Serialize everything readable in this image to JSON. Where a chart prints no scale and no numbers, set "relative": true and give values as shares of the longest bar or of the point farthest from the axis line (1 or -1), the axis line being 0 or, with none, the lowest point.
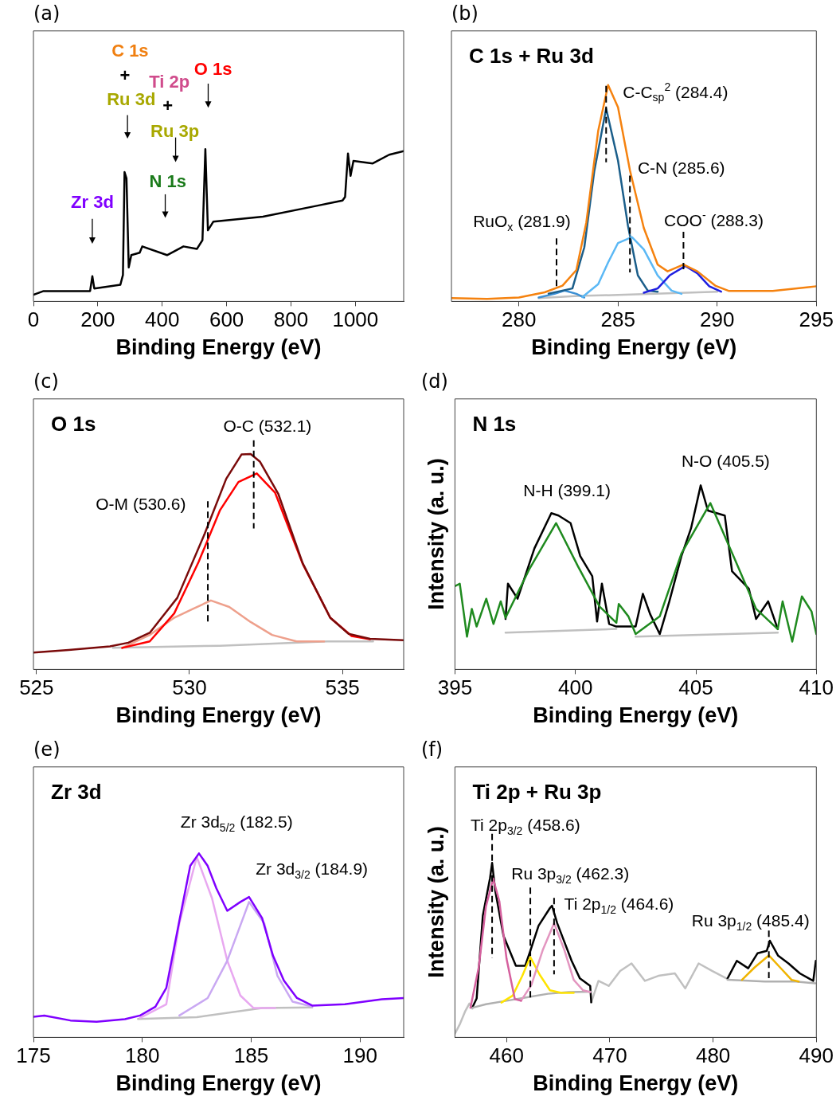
{
  "chart_data": [
    {
      "type": "line",
      "title": "(a)",
      "xlabel": "Binding Energy (eV)",
      "relative": true,
      "xlim": [
        0,
        1150
      ],
      "xticks": [
        0,
        200,
        400,
        600,
        800,
        1000
      ],
      "series": [
        {
          "color": "#000000",
          "x": [
            0,
            31.5,
            176,
            183,
            189,
            270,
            278,
            283,
            289,
            296,
            304,
            330,
            338,
            415,
            466,
            508,
            525,
            534,
            542,
            559,
            713,
            883,
            960,
            968,
            977,
            985,
            994,
            1054,
            1105,
            1150
          ],
          "values": [
            0.044,
            0.068,
            0.068,
            0.166,
            0.085,
            0.109,
            0.174,
            0.849,
            0.808,
            0.223,
            0.304,
            0.32,
            0.361,
            0.304,
            0.361,
            0.345,
            0.402,
            1,
            0.467,
            0.524,
            0.556,
            0.629,
            0.662,
            0.686,
            0.971,
            0.824,
            0.922,
            0.906,
            0.963,
            0.987
          ]
        }
      ],
      "annotations": [
        "C 1s",
        "+",
        "Ti 2p",
        "O 1s",
        "Ru 3d",
        "+",
        "Ru 3p",
        "N 1s",
        "Zr 3d"
      ]
    },
    {
      "type": "line",
      "title": "(b)",
      "subtitle": "C 1s + Ru 3d",
      "xlabel": "Binding Energy (eV)",
      "relative": true,
      "xlim": [
        276.6,
        295
      ],
      "xticks": [
        280,
        285,
        290,
        295
      ],
      "series": [
        {
          "color": "#c0c0c0",
          "x": [
            281,
            283,
            285,
            290
          ],
          "values": [
            0.015,
            0.025,
            0.03,
            0.045
          ]
        },
        {
          "color": "#3b8fd4",
          "x": [
            281,
            281.8,
            282.3,
            282.9,
            283.3
          ],
          "values": [
            0.018,
            0.035,
            0.05,
            0.035,
            0.018
          ]
        },
        {
          "color": "#1b5e8a",
          "x": [
            281.5,
            282.7,
            283.3,
            283.8,
            284.4,
            285,
            285.5,
            286,
            286.5,
            287
          ],
          "values": [
            0.036,
            0.06,
            0.25,
            0.6,
            0.891,
            0.65,
            0.35,
            0.12,
            0.05,
            0.045
          ]
        },
        {
          "color": "#5bb8f5",
          "x": [
            283.2,
            284,
            284.5,
            285,
            285.7,
            286.3,
            287,
            287.7,
            288.2
          ],
          "values": [
            0.02,
            0.08,
            0.18,
            0.27,
            0.297,
            0.24,
            0.12,
            0.05,
            0.035
          ]
        },
        {
          "color": "#1f1fe0",
          "x": [
            286.3,
            287,
            287.6,
            288.4,
            289,
            289.6,
            290.2
          ],
          "values": [
            0.04,
            0.06,
            0.12,
            0.164,
            0.13,
            0.07,
            0.045
          ]
        },
        {
          "color": "#f5820f",
          "x": [
            276.6,
            278.4,
            280,
            281.3,
            282.2,
            282.9,
            283.4,
            284,
            284.5,
            285,
            285.6,
            286.3,
            287,
            287.5,
            288.3,
            289,
            289.9,
            290.6,
            292.8,
            295
          ],
          "values": [
            0.015,
            0.012,
            0.018,
            0.042,
            0.073,
            0.145,
            0.364,
            0.788,
            1,
            0.897,
            0.606,
            0.339,
            0.17,
            0.139,
            0.17,
            0.139,
            0.073,
            0.048,
            0.048,
            0.07
          ]
        }
      ],
      "ref_lines": [
        {
          "axis": "x",
          "value": 284.4,
          "label": "C-C$_{sp}$$^{2}$ (284.4)",
          "line_style": "dashed"
        },
        {
          "axis": "x",
          "value": 285.6,
          "label": "C-N (285.6)",
          "line_style": "dashed"
        },
        {
          "axis": "x",
          "value": 281.9,
          "label": "RuO$_{x}$ (281.9)",
          "line_style": "dashed"
        },
        {
          "axis": "x",
          "value": 288.3,
          "label": "COO$^{-}$ (288.3)",
          "line_style": "dashed"
        }
      ]
    },
    {
      "type": "line",
      "title": "(c)",
      "subtitle": "O 1s",
      "xlabel": "Binding Energy (eV)",
      "relative": true,
      "xlim": [
        524.9,
        537
      ],
      "xticks": [
        525,
        530,
        535
      ],
      "series": [
        {
          "color": "#c0c0c0",
          "x": [
            527.5,
            531,
            534.5,
            536
          ],
          "values": [
            0.1,
            0.11,
            0.13,
            0.13
          ]
        },
        {
          "color": "#eea08c",
          "x": [
            527.8,
            528.7,
            529.5,
            530.1,
            530.7,
            531.3,
            532,
            532.7,
            533.5,
            534.4
          ],
          "values": [
            0.1,
            0.16,
            0.24,
            0.28,
            0.32,
            0.29,
            0.22,
            0.16,
            0.13,
            0.13
          ]
        },
        {
          "color": "#ff0000",
          "x": [
            527.8,
            528.7,
            529.5,
            530.3,
            531,
            531.6,
            532.2,
            532.8,
            533.7,
            534.6,
            535.3,
            535.9
          ],
          "values": [
            0.1,
            0.13,
            0.26,
            0.5,
            0.74,
            0.87,
            0.91,
            0.82,
            0.49,
            0.24,
            0.155,
            0.14
          ]
        },
        {
          "color": "#7a0a0a",
          "x": [
            524.9,
            526.05,
            527.4,
            528,
            528.7,
            529.6,
            530.5,
            531.2,
            531.7,
            532,
            532.3,
            532.9,
            533.7,
            534.6,
            535.2,
            535.9,
            537
          ],
          "values": [
            0.078,
            0.09,
            0.107,
            0.124,
            0.17,
            0.332,
            0.631,
            0.885,
            0.998,
            1,
            0.965,
            0.816,
            0.493,
            0.24,
            0.165,
            0.142,
            0.136
          ]
        }
      ],
      "ref_lines": [
        {
          "axis": "x",
          "value": 532.1,
          "label": "O-C (532.1)",
          "line_style": "dashed"
        },
        {
          "axis": "x",
          "value": 530.6,
          "label": "O-M (530.6)",
          "line_style": "dashed"
        }
      ]
    },
    {
      "type": "line",
      "title": "(d)",
      "subtitle": "N 1s",
      "xlabel": "Binding Energy (eV)",
      "ylabel": "Intensity (a. u.)",
      "relative": true,
      "xlim": [
        395,
        410
      ],
      "xticks": [
        395,
        400,
        405,
        410
      ],
      "series": [
        {
          "color": "#c0c0c0",
          "x": [
            397.1,
            401.7,
            402.1,
            402.5,
            408.4
          ],
          "values": [
            0.2,
            0.22,
            null,
            0.178,
            0.2
          ]
        },
        {
          "color": "#000000",
          "x": [
            397.1,
            397.2,
            397.6,
            398.3,
            399,
            399.3,
            399.8,
            400.2,
            400.7,
            400.9,
            401.1,
            401.4,
            401.7,
            402.5,
            402.8,
            403.1,
            403.5,
            403.9,
            404.4,
            404.8,
            405.2,
            405.5,
            406.2,
            406.5,
            407.2,
            407.5,
            408,
            408.4
          ],
          "values": [
            0.274,
            0.466,
            0.384,
            0.658,
            0.849,
            0.836,
            0.795,
            0.616,
            0.507,
            0.26,
            0.466,
            0.247,
            0.233,
            0.233,
            0.411,
            0.301,
            0.192,
            0.37,
            0.616,
            0.767,
            1,
            0.863,
            0.836,
            0.534,
            0.438,
            0.274,
            0.37,
            0.219
          ]
        },
        {
          "color": "#1f8a1f",
          "x": [
            395,
            395.2,
            395.5,
            395.7,
            395.9,
            396.3,
            396.6,
            396.9,
            397.1,
            398.1,
            399.2,
            400.1,
            401,
            401.7,
            401.8,
            402.2,
            402.5,
            403.5,
            404.4,
            405.6,
            406.6,
            407.5,
            408.4,
            408.6,
            409,
            409.4,
            409.8,
            410
          ],
          "values": [
            0.452,
            0.466,
            0.178,
            0.329,
            0.233,
            0.384,
            0.247,
            0.37,
            0.281,
            0.548,
            0.795,
            0.562,
            0.342,
            0.253,
            0.356,
            0.288,
            0.192,
            0.288,
            0.63,
            0.904,
            0.603,
            0.329,
            0.219,
            0.37,
            0.151,
            0.397,
            0.315,
            0.192
          ]
        }
      ],
      "annotations": [
        "N-H (399.1)",
        "N-O (405.5)"
      ]
    },
    {
      "type": "line",
      "title": "(e)",
      "subtitle": "Zr 3d",
      "xlabel": "Binding Energy (eV)",
      "relative": true,
      "xlim": [
        175,
        192
      ],
      "xticks": [
        175,
        180,
        185,
        190
      ],
      "series": [
        {
          "color": "#c0c0c0",
          "x": [
            179.8,
            182.5,
            185.5,
            187.8
          ],
          "values": [
            0.1,
            0.11,
            0.16,
            0.163
          ]
        },
        {
          "color": "#e8a8f0",
          "x": [
            179.9,
            181.1,
            181.7,
            182.5,
            183.2,
            183.9,
            184.5,
            185.1,
            186.1
          ],
          "values": [
            0.106,
            0.18,
            0.62,
            0.98,
            0.756,
            0.417,
            0.228,
            0.16,
            0.16
          ]
        },
        {
          "color": "#c9a8f2",
          "x": [
            181.7,
            183,
            183.9,
            184.9,
            185.6,
            186.2,
            186.9,
            187.8
          ],
          "values": [
            0.119,
            0.214,
            0.417,
            0.736,
            0.62,
            0.336,
            0.194,
            0.167
          ]
        },
        {
          "color": "#7f00ff",
          "x": [
            175,
            175.5,
            176.7,
            177.9,
            179.2,
            179.9,
            180.6,
            181.1,
            181.7,
            182.2,
            182.6,
            183,
            183.4,
            183.9,
            184.5,
            184.9,
            185.5,
            186,
            186.5,
            187.1,
            187.8,
            189.3,
            191,
            192
          ],
          "values": [
            0.112,
            0.119,
            0.092,
            0.085,
            0.099,
            0.119,
            0.167,
            0.268,
            0.634,
            0.932,
            1,
            0.932,
            0.81,
            0.688,
            0.736,
            0.763,
            0.648,
            0.444,
            0.309,
            0.214,
            0.173,
            0.18,
            0.207,
            0.214
          ]
        }
      ],
      "annotations": [
        "Zr 3d$_{5/2}$ (182.5)",
        "Zr 3d$_{3/2}$ (184.9)"
      ]
    },
    {
      "type": "line",
      "title": "(f)",
      "subtitle": "Ti 2p + Ru 3p",
      "xlabel": "Binding Energy (eV)",
      "ylabel": "Intensity (a. u.)",
      "relative": true,
      "xlim": [
        455,
        490
      ],
      "xticks": [
        460,
        470,
        480,
        490
      ],
      "series": [
        {
          "color": "#c0c0c0",
          "x": [
            455,
            455.5,
            456,
            456.4,
            456.7,
            462,
            468.2,
            468.9,
            469.9,
            471,
            472.1,
            473.4,
            474.7,
            476.3,
            477.3,
            478.6,
            479.9,
            481.3
          ],
          "values": [
            0.022,
            0.079,
            0.151,
            0.194,
            0.165,
            null,
            0.201,
            0.324,
            0.295,
            0.381,
            0.424,
            0.324,
            0.353,
            0.367,
            0.281,
            0.424,
            0.381,
            0.338
          ]
        },
        {
          "color": "#000000",
          "x": [
            456.7,
            457.1,
            457.7,
            458.4,
            458.6,
            458.9,
            459.7,
            460.2,
            460.9,
            461.8,
            462.3,
            463.1,
            464.2,
            464.4,
            464.9,
            466.3,
            467.1,
            468.1,
            468.2,
            475,
            481.4,
            482.3,
            483.4,
            484.3,
            485.2,
            485.5,
            486.3,
            487.3,
            488.4,
            489.7,
            489.95
          ],
          "values": [
            0.173,
            0.223,
            0.698,
            0.914,
            1,
            0.842,
            0.583,
            0.511,
            0.41,
            0.41,
            0.496,
            0.64,
            0.741,
            0.755,
            0.655,
            0.439,
            0.338,
            0.295,
            0.201,
            null,
            0.338,
            0.439,
            0.396,
            0.482,
            0.496,
            0.554,
            0.468,
            0.424,
            0.367,
            0.324,
            0.439
          ]
        },
        {
          "color": "#b0b0b0",
          "x": [
            456.7,
            458,
            460,
            462,
            464,
            466,
            468.2,
            475,
            481.4,
            485,
            488,
            489.9
          ],
          "values": [
            0.17,
            0.19,
            0.21,
            0.23,
            0.25,
            0.26,
            0.262,
            null,
            0.33,
            0.32,
            0.32,
            0.31
          ]
        },
        {
          "color": "#ffe400",
          "x": [
            459.5,
            460.6,
            461.5,
            462.3,
            463.2,
            464.2,
            465.3,
            466.5
          ],
          "values": [
            0.2,
            0.24,
            0.35,
            0.46,
            0.36,
            0.27,
            0.255,
            0.255
          ]
        },
        {
          "color": "#e396c0",
          "x": [
            461.4,
            462.4,
            463.5,
            464.6,
            465.6,
            466.5,
            467.4,
            468.1
          ],
          "values": [
            0.21,
            0.3,
            0.5,
            0.655,
            0.5,
            0.33,
            0.27,
            0.26
          ]
        },
        {
          "color": "#d5609e",
          "x": [
            456.5,
            457.3,
            458,
            458.7,
            459.3,
            460,
            460.8,
            461.4
          ],
          "values": [
            0.17,
            0.4,
            0.75,
            0.91,
            0.78,
            0.45,
            0.22,
            0.21
          ]
        },
        {
          "color": "#f0b400",
          "x": [
            482.8,
            484,
            485.4,
            486.5,
            487.6,
            488.3
          ],
          "values": [
            0.33,
            0.4,
            0.47,
            0.4,
            0.33,
            0.32
          ]
        }
      ],
      "ref_lines": [
        {
          "axis": "x",
          "value": 458.6,
          "label": "Ti 2p$_{3/2}$ (458.6)",
          "line_style": "dashed"
        },
        {
          "axis": "x",
          "value": 462.3,
          "label": "Ru 3p$_{3/2}$ (462.3)",
          "line_style": "dashed"
        },
        {
          "axis": "x",
          "value": 464.6,
          "label": "Ti 2p$_{1/2}$ (464.6)",
          "line_style": "dashed"
        },
        {
          "axis": "x",
          "value": 485.4,
          "label": "Ru 3p$_{1/2}$ (485.4)",
          "line_style": "dashed"
        }
      ]
    }
  ]
}
